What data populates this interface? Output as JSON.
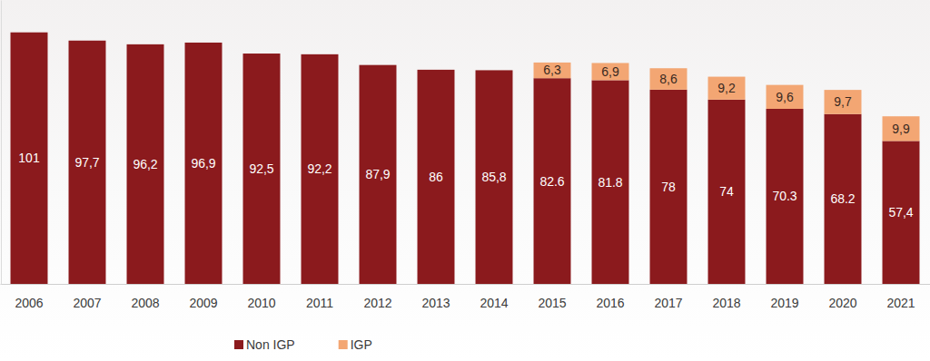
{
  "chart_data": {
    "type": "bar",
    "stacked": true,
    "data_labels": true,
    "tick_labels": "x",
    "legend": "bottom",
    "categories": [
      "2006",
      "2007",
      "2008",
      "2009",
      "2010",
      "2011",
      "2012",
      "2013",
      "2014",
      "2015",
      "2016",
      "2017",
      "2018",
      "2019",
      "2020",
      "2021"
    ],
    "series": [
      {
        "name": "Non IGP",
        "color": "#8b1a1d",
        "values": [
          101,
          97.7,
          96.2,
          96.9,
          92.5,
          92.2,
          87.9,
          86,
          85.8,
          82.6,
          81.8,
          78,
          74,
          70.3,
          68.2,
          57.4
        ],
        "value_labels": [
          "101",
          "97,7",
          "96,2",
          "96,9",
          "92,5",
          "92,2",
          "87,9",
          "86",
          "85,8",
          "82.6",
          "81.8",
          "78",
          "74",
          "70.3",
          "68.2",
          "57,4"
        ]
      },
      {
        "name": "IGP",
        "color": "#f3a673",
        "values": [
          null,
          null,
          null,
          null,
          null,
          null,
          null,
          null,
          null,
          6.3,
          6.9,
          8.6,
          9.2,
          9.6,
          9.7,
          9.9
        ],
        "value_labels": [
          null,
          null,
          null,
          null,
          null,
          null,
          null,
          null,
          null,
          "6,3",
          "6,9",
          "8,6",
          "9,2",
          "9,6",
          "9,7",
          "9,9"
        ]
      }
    ],
    "ylim": [
      0,
      114
    ],
    "yticks": []
  }
}
